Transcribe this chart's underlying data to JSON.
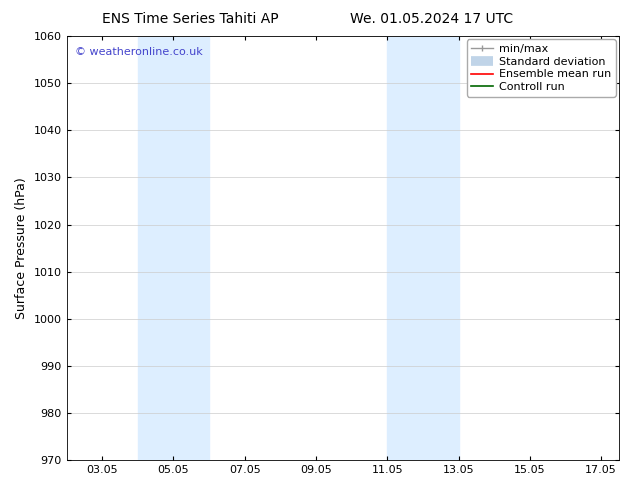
{
  "title_left": "ENS Time Series Tahiti AP",
  "title_right": "We. 01.05.2024 17 UTC",
  "ylabel": "Surface Pressure (hPa)",
  "ylim": [
    970,
    1060
  ],
  "yticks": [
    970,
    980,
    990,
    1000,
    1010,
    1020,
    1030,
    1040,
    1050,
    1060
  ],
  "xlim_start": 2.0,
  "xlim_end": 17.5,
  "xtick_labels": [
    "03.05",
    "05.05",
    "07.05",
    "09.05",
    "11.05",
    "13.05",
    "15.05",
    "17.05"
  ],
  "xtick_positions": [
    3.0,
    5.0,
    7.0,
    9.0,
    11.0,
    13.0,
    15.0,
    17.0
  ],
  "shaded_bands": [
    {
      "x_start": 4.0,
      "x_end": 6.0
    },
    {
      "x_start": 11.0,
      "x_end": 13.0
    }
  ],
  "shaded_color": "#ddeeff",
  "background_color": "#ffffff",
  "grid_color": "#cccccc",
  "watermark_text": "© weatheronline.co.uk",
  "watermark_color": "#4444cc",
  "legend_entries": [
    {
      "label": "min/max",
      "color": "#aaaaaa",
      "lw": 1.2
    },
    {
      "label": "Standard deviation",
      "color": "#c8dff0",
      "lw": 7
    },
    {
      "label": "Ensemble mean run",
      "color": "#ff0000",
      "lw": 1.2
    },
    {
      "label": "Controll run",
      "color": "#006600",
      "lw": 1.2
    }
  ],
  "title_fontsize": 10,
  "label_fontsize": 9,
  "tick_fontsize": 8,
  "legend_fontsize": 8,
  "watermark_fontsize": 8
}
